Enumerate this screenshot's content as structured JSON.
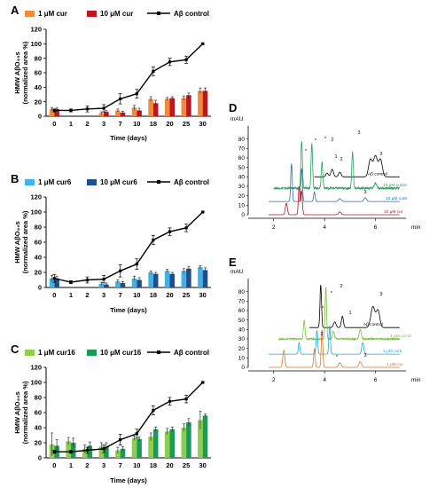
{
  "panels": {
    "A": "A",
    "B": "B",
    "C": "C",
    "D": "D",
    "E": "E"
  },
  "colors": {
    "cur_1": "#f08a3c",
    "cur_10": "#c0141e",
    "cur6_1": "#3fb3e8",
    "cur6_10": "#1f4e8c",
    "cur16_1": "#8ccf4a",
    "cur16_10": "#1a9a55",
    "control": "#000000",
    "chrom_green": "#2ca05a",
    "chrom_blue": "#2b6fb3",
    "chrom_red": "#c0141e",
    "chrom_lgreen": "#7cc23a",
    "chrom_cyan": "#22a6d4",
    "chrom_orange": "#e0782a"
  },
  "chart_data": [
    {
      "type": "bar",
      "panel": "A",
      "categories": [
        "0",
        "1",
        "2",
        "3",
        "7",
        "10",
        "18",
        "20",
        "25",
        "30"
      ],
      "ylabel_line1": "HMW AβO₄₀s",
      "ylabel_line2": "(normalized area %)",
      "xlabel": "Time (days)",
      "ylim": [
        0,
        120
      ],
      "yticks": [
        "0",
        "20",
        "40",
        "60",
        "80",
        "100",
        "120"
      ],
      "series": [
        {
          "name": "1 μM cur",
          "values": [
            10,
            null,
            null,
            4,
            8,
            12,
            24,
            24,
            25,
            35
          ],
          "err": [
            2,
            0,
            0,
            2,
            2,
            3,
            3,
            2,
            3,
            4
          ]
        },
        {
          "name": "10 μM cur",
          "values": [
            10,
            null,
            null,
            6,
            5,
            8,
            18,
            25,
            29,
            35
          ],
          "err": [
            2,
            0,
            0,
            2,
            2,
            3,
            4,
            2,
            3,
            4
          ]
        }
      ],
      "line": {
        "name": "Aβ control",
        "values": [
          8,
          8,
          10,
          11,
          24,
          31,
          62,
          75,
          78,
          100
        ],
        "err": [
          2,
          2,
          4,
          5,
          7,
          6,
          6,
          5,
          5,
          1
        ]
      }
    },
    {
      "type": "bar",
      "panel": "B",
      "categories": [
        "0",
        "1",
        "2",
        "3",
        "7",
        "10",
        "18",
        "20",
        "25",
        "30"
      ],
      "ylabel_line1": "HMW AβO₄₀s",
      "ylabel_line2": "(normalized area %)",
      "xlabel": "Time (days)",
      "ylim": [
        0,
        120
      ],
      "yticks": [
        "0",
        "20",
        "40",
        "60",
        "80",
        "100",
        "120"
      ],
      "series": [
        {
          "name": "1 μM cur6",
          "values": [
            12,
            null,
            null,
            5,
            8,
            12,
            20,
            22,
            22,
            27
          ],
          "err": [
            4,
            0,
            0,
            2,
            2,
            3,
            2,
            2,
            3,
            2
          ]
        },
        {
          "name": "10 μM cur6",
          "values": [
            12,
            null,
            null,
            4,
            6,
            10,
            18,
            18,
            25,
            23
          ],
          "err": [
            3,
            0,
            0,
            2,
            2,
            3,
            2,
            2,
            3,
            3
          ]
        }
      ],
      "line": {
        "name": "Aβ control",
        "values": [
          12,
          7,
          10,
          11,
          22,
          31,
          63,
          74,
          79,
          100
        ],
        "err": [
          5,
          2,
          4,
          5,
          8,
          7,
          6,
          5,
          5,
          1
        ]
      }
    },
    {
      "type": "bar",
      "panel": "C",
      "categories": [
        "0",
        "1",
        "2",
        "3",
        "7",
        "10",
        "18",
        "20",
        "25",
        "30"
      ],
      "ylabel_line1": "HMW AβO₄₀s",
      "ylabel_line2": "(normalized area %)",
      "xlabel": "Time (days)",
      "ylim": [
        0,
        120
      ],
      "yticks": [
        "0",
        "20",
        "40",
        "60",
        "80",
        "100",
        "120"
      ],
      "series": [
        {
          "name": "1 μM cur16",
          "values": [
            18,
            22,
            12,
            15,
            10,
            26,
            28,
            35,
            40,
            50
          ],
          "err": [
            15,
            5,
            5,
            5,
            4,
            3,
            5,
            4,
            5,
            12
          ]
        },
        {
          "name": "10 μM cur16",
          "values": [
            16,
            20,
            16,
            15,
            12,
            25,
            38,
            38,
            47,
            56
          ],
          "err": [
            8,
            6,
            5,
            5,
            3,
            3,
            3,
            3,
            5,
            2
          ]
        }
      ],
      "line": {
        "name": "Aβ control",
        "values": [
          8,
          8,
          10,
          12,
          24,
          32,
          63,
          75,
          78,
          100
        ],
        "err": [
          2,
          2,
          4,
          5,
          7,
          6,
          6,
          5,
          5,
          1
        ]
      }
    },
    {
      "type": "line",
      "panel": "D",
      "ylabel": "mAU",
      "xlabel": "min",
      "yticks": [
        "0",
        "10",
        "20",
        "30",
        "40",
        "50",
        "60",
        "70",
        "80"
      ],
      "xticks": [
        "2",
        "4",
        "6"
      ],
      "series": [
        {
          "name": "Aβ control"
        },
        {
          "name": "10 μM cur16"
        },
        {
          "name": "10 μM cur6"
        },
        {
          "name": "10 μM cur"
        }
      ],
      "peak_labels": [
        "*",
        "*",
        "*",
        "1",
        "2",
        "2",
        "3",
        "3",
        "3"
      ]
    },
    {
      "type": "line",
      "panel": "E",
      "ylabel": "mAU",
      "xlabel": "min",
      "yticks": [
        "0",
        "10",
        "20",
        "30",
        "40",
        "50",
        "60",
        "70",
        "80"
      ],
      "xticks": [
        "2",
        "4",
        "6"
      ],
      "series": [
        {
          "name": "Aβ control"
        },
        {
          "name": "1 μM cur16"
        },
        {
          "name": "1 μM cur6"
        },
        {
          "name": "1 μM cur"
        }
      ],
      "peak_labels": [
        "*",
        "*",
        "*",
        "1",
        "2",
        "2",
        "3",
        "3"
      ]
    }
  ]
}
